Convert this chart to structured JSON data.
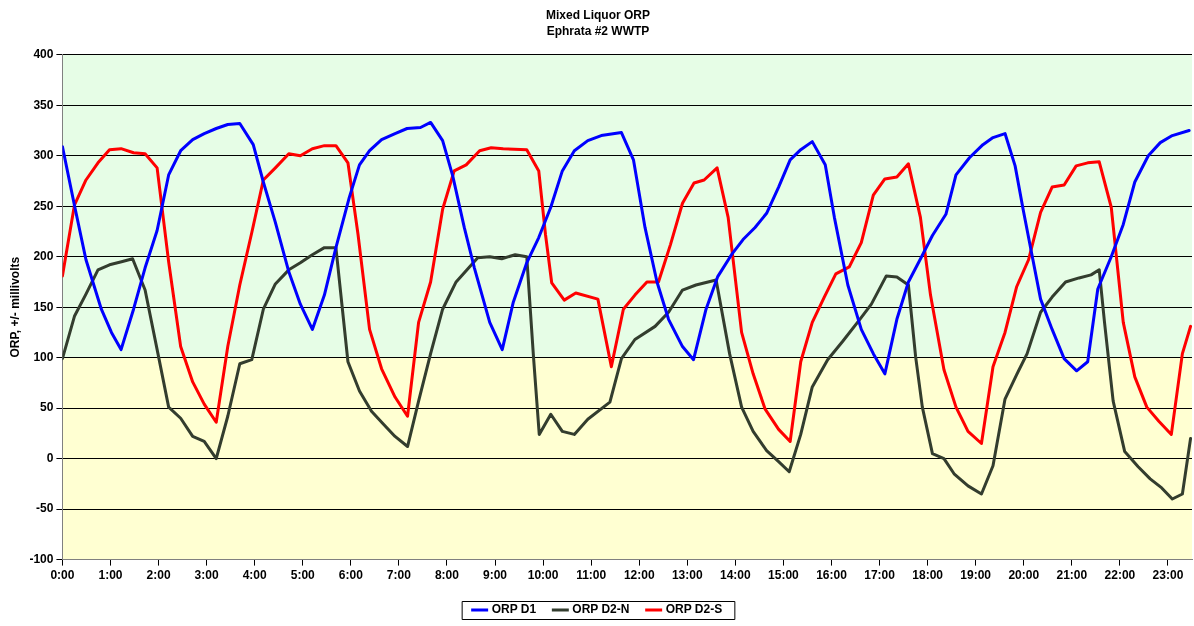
{
  "chart_data": {
    "type": "line",
    "title": "Mixed Liquor ORP",
    "subtitle": "Ephrata #2 WWTP",
    "ylabel": "ORP, +/- millivolts",
    "xlim": [
      0,
      23.5
    ],
    "xticks": [
      {
        "value": 0,
        "label": "0:00"
      },
      {
        "value": 1,
        "label": "1:00"
      },
      {
        "value": 2,
        "label": "2:00"
      },
      {
        "value": 3,
        "label": "3:00"
      },
      {
        "value": 4,
        "label": "4:00"
      },
      {
        "value": 5,
        "label": "5:00"
      },
      {
        "value": 6,
        "label": "6:00"
      },
      {
        "value": 7,
        "label": "7:00"
      },
      {
        "value": 8,
        "label": "8:00"
      },
      {
        "value": 9,
        "label": "9:00"
      },
      {
        "value": 10,
        "label": "10:00"
      },
      {
        "value": 11,
        "label": "11:00"
      },
      {
        "value": 12,
        "label": "12:00"
      },
      {
        "value": 13,
        "label": "13:00"
      },
      {
        "value": 14,
        "label": "14:00"
      },
      {
        "value": 15,
        "label": "15:00"
      },
      {
        "value": 16,
        "label": "16:00"
      },
      {
        "value": 17,
        "label": "17:00"
      },
      {
        "value": 18,
        "label": "18:00"
      },
      {
        "value": 19,
        "label": "19:00"
      },
      {
        "value": 20,
        "label": "20:00"
      },
      {
        "value": 21,
        "label": "21:00"
      },
      {
        "value": 22,
        "label": "22:00"
      },
      {
        "value": 23,
        "label": "23:00"
      }
    ],
    "ylim": [
      -100,
      400
    ],
    "yticks": [
      -100,
      -50,
      0,
      50,
      100,
      150,
      200,
      250,
      300,
      350,
      400
    ],
    "grid": "y",
    "legend": "bottom",
    "marker": "none",
    "line_style": "solid",
    "bands": [
      {
        "axis": "y",
        "from": 100,
        "to": 400,
        "color": "#e6fde6"
      },
      {
        "axis": "y",
        "from": -100,
        "to": 100,
        "color": "#ffffd2"
      }
    ],
    "series": [
      {
        "name": "ORP D1",
        "color": "#0000ff",
        "x": [
          0,
          0.25,
          0.49,
          0.81,
          1.02,
          1.22,
          1.48,
          1.72,
          1.97,
          2.21,
          2.46,
          2.71,
          2.95,
          3.2,
          3.44,
          3.69,
          3.97,
          4.18,
          4.43,
          4.71,
          4.95,
          5.2,
          5.45,
          5.69,
          5.97,
          6.18,
          6.39,
          6.64,
          6.92,
          7.17,
          7.45,
          7.66,
          7.91,
          8.12,
          8.36,
          8.57,
          8.89,
          9.15,
          9.38,
          9.66,
          9.91,
          10.16,
          10.4,
          10.65,
          10.93,
          11.21,
          11.63,
          11.88,
          12.12,
          12.37,
          12.61,
          12.9,
          13.13,
          13.39,
          13.63,
          13.92,
          14.16,
          14.41,
          14.65,
          14.9,
          15.14,
          15.36,
          15.6,
          15.87,
          16.06,
          16.34,
          16.62,
          16.87,
          17.11,
          17.36,
          17.6,
          17.82,
          18.1,
          18.38,
          18.59,
          18.87,
          19.15,
          19.36,
          19.61,
          19.82,
          19.99,
          20.17,
          20.35,
          20.59,
          20.84,
          21.1,
          21.33,
          21.54,
          21.82,
          22.07,
          22.31,
          22.59,
          22.84,
          23.09,
          23.44
        ],
        "values": [
          309,
          251,
          197,
          148,
          125,
          108,
          148,
          189,
          226,
          281,
          305,
          316,
          322,
          327,
          331,
          332,
          311,
          274,
          234,
          185,
          153,
          128,
          162,
          209,
          259,
          291,
          305,
          316,
          322,
          327,
          328,
          333,
          315,
          280,
          229,
          189,
          135,
          108,
          155,
          194,
          219,
          249,
          285,
          305,
          315,
          320,
          323,
          296,
          229,
          175,
          138,
          111,
          98,
          148,
          180,
          202,
          217,
          229,
          243,
          269,
          296,
          306,
          314,
          291,
          239,
          172,
          128,
          104,
          84,
          138,
          175,
          195,
          221,
          242,
          281,
          298,
          311,
          318,
          322,
          290,
          246,
          202,
          158,
          128,
          99,
          87,
          96,
          168,
          200,
          232,
          274,
          300,
          313,
          320,
          325
        ]
      },
      {
        "name": "ORP D2-N",
        "color": "#333d2e",
        "x": [
          0,
          0.25,
          0.49,
          0.74,
          0.98,
          1.23,
          1.46,
          1.72,
          2.0,
          2.21,
          2.46,
          2.71,
          2.95,
          3.2,
          3.44,
          3.69,
          3.94,
          4.18,
          4.43,
          4.71,
          4.95,
          5.2,
          5.45,
          5.69,
          5.94,
          6.18,
          6.43,
          6.68,
          6.92,
          7.18,
          7.41,
          7.66,
          7.91,
          8.19,
          8.64,
          8.89,
          9.14,
          9.42,
          9.66,
          9.8,
          9.92,
          10.16,
          10.4,
          10.65,
          10.93,
          11.39,
          11.63,
          11.91,
          12.33,
          12.61,
          12.9,
          13.18,
          13.6,
          13.88,
          14.13,
          14.37,
          14.65,
          14.9,
          15.12,
          15.36,
          15.6,
          15.92,
          16.23,
          16.59,
          16.83,
          17.14,
          17.36,
          17.6,
          17.75,
          17.89,
          18.1,
          18.34,
          18.55,
          18.84,
          19.12,
          19.36,
          19.61,
          19.85,
          20.07,
          20.35,
          20.59,
          20.87,
          21.15,
          21.4,
          21.57,
          21.68,
          21.86,
          22.1,
          22.38,
          22.63,
          22.87,
          23.09,
          23.3,
          23.47
        ],
        "values": [
          99,
          141,
          163,
          187,
          192,
          195,
          198,
          167,
          101,
          51,
          40,
          22,
          17,
          0,
          42,
          94,
          98,
          148,
          173,
          187,
          194,
          202,
          209,
          209,
          96,
          67,
          47,
          34,
          22,
          12,
          57,
          104,
          148,
          175,
          199,
          200,
          198,
          202,
          200,
          101,
          24,
          44,
          27,
          24,
          39,
          56,
          99,
          118,
          131,
          145,
          167,
          172,
          177,
          104,
          51,
          27,
          8,
          -3,
          -13,
          24,
          71,
          98,
          116,
          138,
          153,
          181,
          180,
          172,
          101,
          51,
          5,
          0,
          -15,
          -27,
          -35,
          -7,
          59,
          83,
          104,
          145,
          160,
          175,
          179,
          182,
          187,
          135,
          57,
          7,
          -8,
          -20,
          -29,
          -40,
          -35,
          20
        ]
      },
      {
        "name": "ORP D2-S",
        "color": "#ff0000",
        "x": [
          0,
          0.25,
          0.49,
          0.74,
          0.98,
          1.22,
          1.48,
          1.72,
          1.97,
          2.21,
          2.46,
          2.71,
          2.95,
          3.2,
          3.44,
          3.69,
          3.94,
          4.18,
          4.43,
          4.71,
          4.95,
          5.2,
          5.45,
          5.69,
          5.94,
          6.15,
          6.39,
          6.64,
          6.92,
          7.18,
          7.41,
          7.66,
          7.91,
          8.15,
          8.4,
          8.68,
          8.92,
          9.17,
          9.66,
          9.91,
          10.05,
          10.18,
          10.44,
          10.68,
          11.14,
          11.42,
          11.67,
          11.91,
          12.16,
          12.4,
          12.65,
          12.9,
          13.14,
          13.35,
          13.62,
          13.85,
          14.13,
          14.37,
          14.62,
          14.9,
          15.14,
          15.36,
          15.6,
          15.85,
          16.09,
          16.37,
          16.62,
          16.87,
          17.11,
          17.36,
          17.6,
          17.85,
          18.06,
          18.34,
          18.59,
          18.84,
          19.12,
          19.36,
          19.61,
          19.85,
          20.1,
          20.35,
          20.59,
          20.84,
          21.09,
          21.33,
          21.57,
          21.82,
          22.07,
          22.31,
          22.56,
          22.81,
          23.07,
          23.3,
          23.47
        ],
        "values": [
          181,
          251,
          276,
          293,
          306,
          307,
          303,
          302,
          288,
          195,
          111,
          76,
          54,
          36,
          111,
          172,
          224,
          276,
          288,
          302,
          300,
          307,
          310,
          310,
          293,
          222,
          128,
          89,
          61,
          42,
          135,
          175,
          247,
          285,
          291,
          305,
          308,
          307,
          306,
          285,
          222,
          174,
          157,
          164,
          158,
          91,
          148,
          162,
          175,
          175,
          212,
          253,
          273,
          276,
          288,
          239,
          125,
          84,
          49,
          29,
          17,
          96,
          135,
          160,
          183,
          190,
          214,
          261,
          277,
          279,
          292,
          239,
          162,
          88,
          51,
          27,
          15,
          91,
          125,
          170,
          197,
          244,
          269,
          271,
          290,
          293,
          294,
          249,
          135,
          81,
          51,
          37,
          24,
          104,
          131
        ]
      }
    ]
  }
}
